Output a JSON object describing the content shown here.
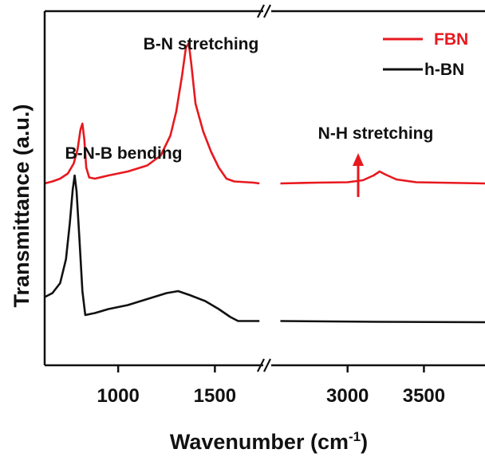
{
  "chart_data": {
    "type": "line",
    "xlabel": "Wavenumber (cm",
    "xlabel_sup": "-1",
    "xlabel_close": ")",
    "ylabel": "Transmittance (a.u.)",
    "x_axis": "broken",
    "x_segments": [
      {
        "xlim": [
          620,
          1750
        ],
        "ticks": [
          1000,
          1500
        ],
        "tick_labels": [
          "1000",
          "1500"
        ]
      },
      {
        "xlim": [
          2500,
          3900
        ],
        "ticks": [
          3000,
          3500
        ],
        "tick_labels": [
          "3000",
          "3500"
        ]
      }
    ],
    "yticks": "none",
    "grid": false,
    "legend": {
      "position": "top-right",
      "entries": [
        "FBN",
        "h-BN"
      ]
    },
    "series": [
      {
        "name": "FBN",
        "color": "#e8181f",
        "segments": [
          [
            [
              620,
              0.66
            ],
            [
              660,
              0.665
            ],
            [
              700,
              0.672
            ],
            [
              740,
              0.685
            ],
            [
              770,
              0.71
            ],
            [
              790,
              0.745
            ],
            [
              805,
              0.795
            ],
            [
              815,
              0.81
            ],
            [
              825,
              0.77
            ],
            [
              835,
              0.7
            ],
            [
              850,
              0.675
            ],
            [
              880,
              0.672
            ],
            [
              950,
              0.68
            ],
            [
              1050,
              0.69
            ],
            [
              1150,
              0.705
            ],
            [
              1220,
              0.73
            ],
            [
              1270,
              0.78
            ],
            [
              1300,
              0.84
            ],
            [
              1330,
              0.93
            ],
            [
              1350,
              1.0
            ],
            [
              1365,
              1.012
            ],
            [
              1378,
              0.96
            ],
            [
              1400,
              0.86
            ],
            [
              1440,
              0.79
            ],
            [
              1480,
              0.74
            ],
            [
              1520,
              0.7
            ],
            [
              1560,
              0.672
            ],
            [
              1600,
              0.665
            ],
            [
              1700,
              0.662
            ],
            [
              1730,
              0.66
            ]
          ],
          [
            [
              2560,
              0.66
            ],
            [
              2800,
              0.662
            ],
            [
              3000,
              0.663
            ],
            [
              3100,
              0.668
            ],
            [
              3170,
              0.68
            ],
            [
              3210,
              0.69
            ],
            [
              3250,
              0.682
            ],
            [
              3320,
              0.67
            ],
            [
              3450,
              0.663
            ],
            [
              3600,
              0.662
            ],
            [
              3900,
              0.66
            ]
          ]
        ]
      },
      {
        "name": "h-BN",
        "color": "#111111",
        "segments": [
          [
            [
              620,
              0.375
            ],
            [
              660,
              0.385
            ],
            [
              700,
              0.41
            ],
            [
              730,
              0.47
            ],
            [
              750,
              0.56
            ],
            [
              765,
              0.645
            ],
            [
              775,
              0.68
            ],
            [
              785,
              0.64
            ],
            [
              800,
              0.52
            ],
            [
              815,
              0.39
            ],
            [
              830,
              0.33
            ],
            [
              880,
              0.335
            ],
            [
              950,
              0.345
            ],
            [
              1050,
              0.355
            ],
            [
              1150,
              0.37
            ],
            [
              1250,
              0.385
            ],
            [
              1310,
              0.39
            ],
            [
              1370,
              0.38
            ],
            [
              1450,
              0.365
            ],
            [
              1520,
              0.345
            ],
            [
              1580,
              0.325
            ],
            [
              1620,
              0.315
            ],
            [
              1730,
              0.315
            ]
          ],
          [
            [
              2560,
              0.315
            ],
            [
              3200,
              0.313
            ],
            [
              3900,
              0.312
            ]
          ]
        ]
      }
    ],
    "annotations": [
      {
        "text": "B-N stretching",
        "x": 1365
      },
      {
        "text": "B-N-B bending",
        "x": 800
      },
      {
        "text": "N-H stretching",
        "x": 3210
      }
    ],
    "break_mark": "//"
  }
}
